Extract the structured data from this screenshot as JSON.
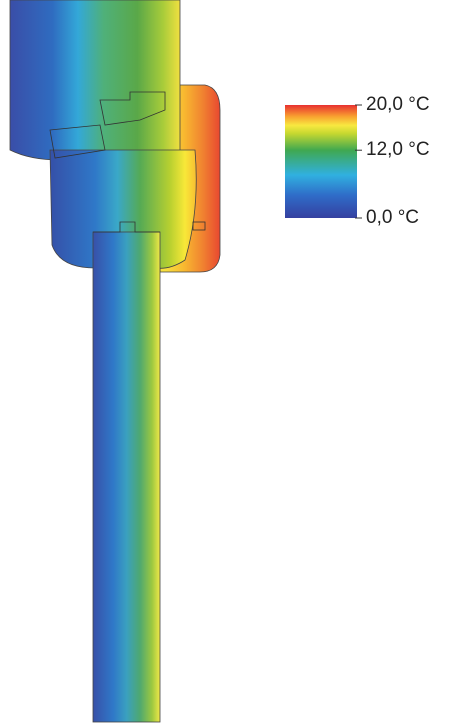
{
  "legend": {
    "range": [
      0,
      20
    ],
    "ticks": [
      {
        "value": 20,
        "label": "20,0 °C"
      },
      {
        "value": 12,
        "label": "12,0 °C"
      },
      {
        "value": 0,
        "label": "0,0 °C"
      }
    ]
  }
}
